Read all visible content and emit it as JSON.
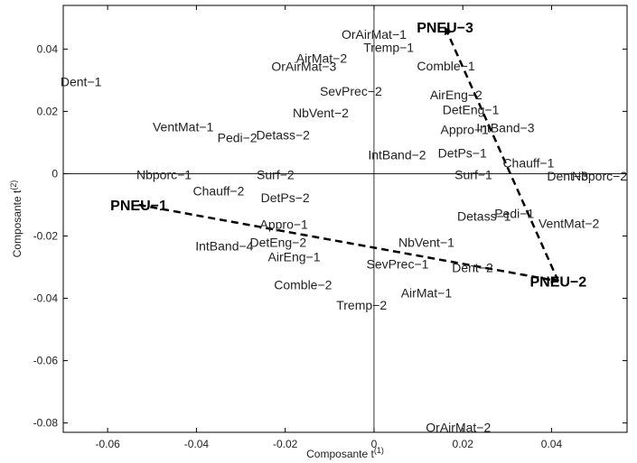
{
  "chart_data": {
    "type": "scatter",
    "xlabel": "Composante t",
    "xlabel_sup": "(1)",
    "ylabel": "Composante t",
    "ylabel_sup": "(2)",
    "xlim": [
      -0.07,
      0.057
    ],
    "ylim": [
      -0.083,
      0.054
    ],
    "xticks": [
      -0.06,
      -0.04,
      -0.02,
      0,
      0.02,
      0.04
    ],
    "xtick_labels": [
      "-0.06",
      "-0.04",
      "-0.02",
      "0",
      "0.02",
      "0.04"
    ],
    "yticks": [
      0.04,
      0.02,
      0,
      -0.02,
      -0.04,
      -0.06,
      -0.08
    ],
    "ytick_labels": [
      "0.04",
      "0.02",
      "0",
      "-0.02",
      "-0.04",
      "-0.06",
      "-0.08"
    ],
    "grid": false,
    "points": [
      {
        "label": "OrAirMat−1",
        "x": 0.0,
        "y": 0.0447
      },
      {
        "label": "Tremp−1",
        "x": 0.0033,
        "y": 0.0405
      },
      {
        "label": "AirMat−2",
        "x": -0.0118,
        "y": 0.037
      },
      {
        "label": "OrAirMat−3",
        "x": -0.0158,
        "y": 0.0345
      },
      {
        "label": "Comble−1",
        "x": 0.0162,
        "y": 0.0346
      },
      {
        "label": "Dent−1",
        "x": -0.066,
        "y": 0.0295
      },
      {
        "label": "SevPrec−2",
        "x": -0.0052,
        "y": 0.0265
      },
      {
        "label": "AirEng−2",
        "x": 0.0185,
        "y": 0.0253
      },
      {
        "label": "NbVent−2",
        "x": -0.012,
        "y": 0.0195
      },
      {
        "label": "DetEng−1",
        "x": 0.0218,
        "y": 0.0205
      },
      {
        "label": "VentMat−1",
        "x": -0.043,
        "y": 0.015
      },
      {
        "label": "Appro−1",
        "x": 0.0204,
        "y": 0.0142
      },
      {
        "label": "IntBand−3",
        "x": 0.0296,
        "y": 0.0148
      },
      {
        "label": "Detass−2",
        "x": -0.0205,
        "y": 0.0125
      },
      {
        "label": "Pedi−2",
        "x": -0.0308,
        "y": 0.0115
      },
      {
        "label": "IntBand−2",
        "x": 0.0052,
        "y": 0.006
      },
      {
        "label": "DetPs−1",
        "x": 0.0199,
        "y": 0.0067
      },
      {
        "label": "Chauff−1",
        "x": 0.0348,
        "y": 0.0035
      },
      {
        "label": "Nbporc−1",
        "x": -0.0473,
        "y": -0.0003
      },
      {
        "label": "Surf−2",
        "x": -0.0222,
        "y": -0.0003
      },
      {
        "label": "Surf−1",
        "x": 0.0224,
        "y": -0.0003
      },
      {
        "label": "Dent−3",
        "x": 0.0436,
        "y": -0.0007
      },
      {
        "label": "Nbporc−2",
        "x": 0.0508,
        "y": -0.0007
      },
      {
        "label": "Chauff−2",
        "x": -0.035,
        "y": -0.0055
      },
      {
        "label": "DetPs−2",
        "x": -0.02,
        "y": -0.0077
      },
      {
        "label": "Pedi−1",
        "x": 0.0316,
        "y": -0.0127
      },
      {
        "label": "Detass−1",
        "x": 0.0248,
        "y": -0.0137
      },
      {
        "label": "VentMat−2",
        "x": 0.0439,
        "y": -0.016
      },
      {
        "label": "Appro−1",
        "x": -0.0203,
        "y": -0.0163
      },
      {
        "label": "DetEng−2",
        "x": -0.0216,
        "y": -0.022
      },
      {
        "label": "IntBand−4",
        "x": -0.0337,
        "y": -0.0232
      },
      {
        "label": "AirEng−1",
        "x": -0.018,
        "y": -0.0267
      },
      {
        "label": "NbVent−1",
        "x": 0.0118,
        "y": -0.0221
      },
      {
        "label": "SevPrec−1",
        "x": 0.0053,
        "y": -0.029
      },
      {
        "label": "Dent−2",
        "x": 0.0222,
        "y": -0.0302
      },
      {
        "label": "Comble−2",
        "x": -0.016,
        "y": -0.0357
      },
      {
        "label": "AirMat−1",
        "x": 0.0118,
        "y": -0.0383
      },
      {
        "label": "Tremp−2",
        "x": -0.0028,
        "y": -0.0422
      },
      {
        "label": "OrAirMat−2",
        "x": 0.019,
        "y": -0.0814
      }
    ],
    "groups": [
      {
        "label": "PNEU−1",
        "x": -0.053,
        "y": -0.01
      },
      {
        "label": "PNEU−2",
        "x": 0.0415,
        "y": -0.0345
      },
      {
        "label": "PNEU−3",
        "x": 0.016,
        "y": 0.047
      }
    ],
    "arrows": [
      {
        "from": "PNEU−1",
        "to": "PNEU−2"
      },
      {
        "from": "PNEU−2",
        "to": "PNEU−3"
      }
    ]
  }
}
